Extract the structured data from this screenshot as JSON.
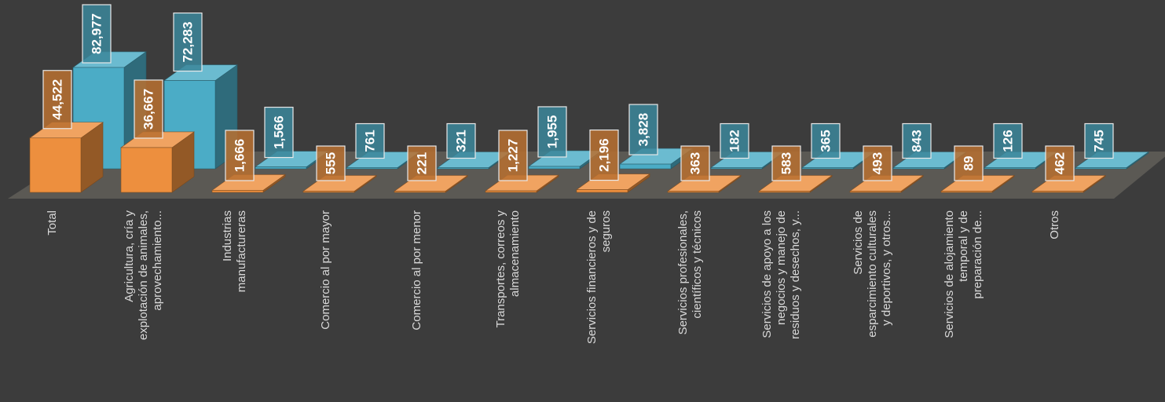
{
  "chart_data": {
    "type": "bar",
    "variant": "3d-clustered",
    "title": "",
    "xlabel": "",
    "ylabel": "",
    "categories": [
      [
        "Total"
      ],
      [
        "Agricultura, cría y",
        "explotación de animales,",
        "aprovechamiento..."
      ],
      [
        "Industrias",
        "manufactureras"
      ],
      [
        "Comercio al por mayor"
      ],
      [
        "Comercio al por menor"
      ],
      [
        "Transportes, correos y",
        "almacenamiento"
      ],
      [
        "Servicios financieros y de",
        "seguros"
      ],
      [
        "Servicios profesionales,",
        "científicos y técnicos"
      ],
      [
        "Servicios de apoyo a los",
        "negocios y manejo de",
        "residuos y desechos, y..."
      ],
      [
        "Servicios de",
        "esparcimiento culturales",
        "y deportivos, y otros..."
      ],
      [
        "Servicios de alojamiento",
        "temporal y de",
        "preparación de..."
      ],
      [
        "Otros"
      ]
    ],
    "series": [
      {
        "values": [
          44522,
          36667,
          1666,
          555,
          221,
          1227,
          2196,
          363,
          583,
          493,
          89,
          462
        ],
        "labels": [
          "44,522",
          "36,667",
          "1,666",
          "555",
          "221",
          "1,227",
          "2,196",
          "363",
          "583",
          "493",
          "89",
          "462"
        ],
        "color": "#ed8f3e"
      },
      {
        "values": [
          82977,
          72283,
          1566,
          761,
          321,
          1955,
          3828,
          182,
          365,
          843,
          126,
          745
        ],
        "labels": [
          "82,977",
          "72,283",
          "1,566",
          "761",
          "321",
          "1,955",
          "3,828",
          "182",
          "365",
          "843",
          "126",
          "745"
        ],
        "color": "#4bacc6"
      }
    ],
    "ylim": [
      0,
      90000
    ],
    "grid": false,
    "legend": "none"
  }
}
